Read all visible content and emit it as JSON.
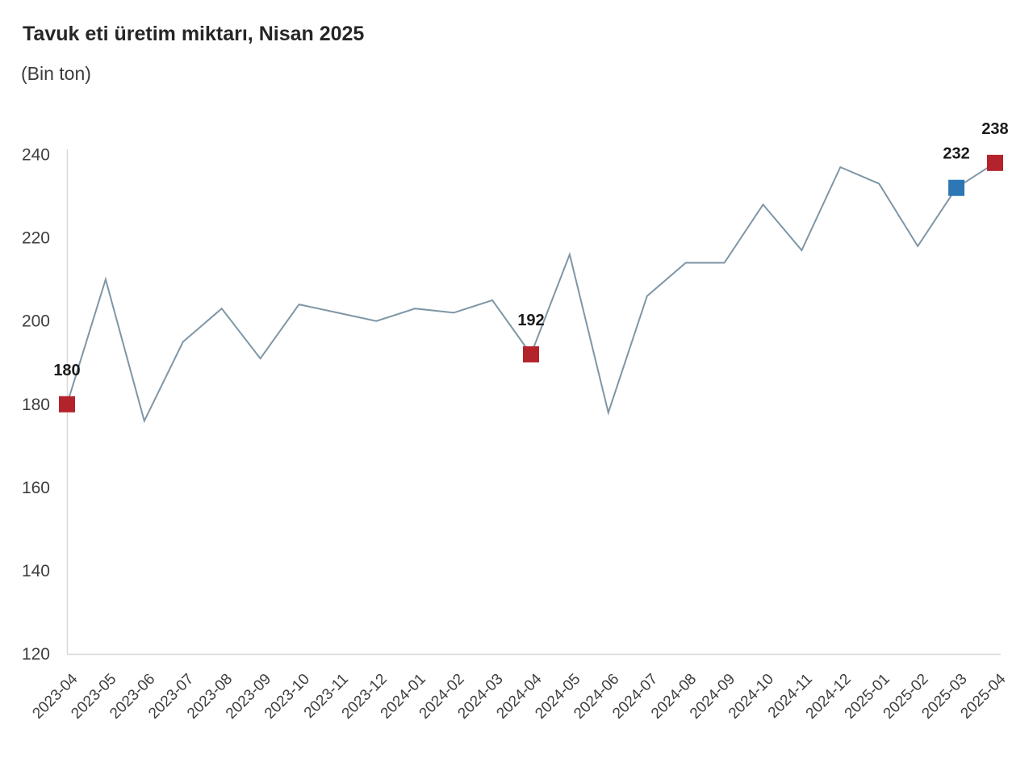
{
  "title": "Tavuk eti üretim miktarı, Nisan 2025",
  "subtitle": "(Bin ton)",
  "chart_data": {
    "type": "line",
    "title": "Tavuk eti üretim miktarı, Nisan 2025",
    "unit_label": "(Bin ton)",
    "x": [
      "2023-04",
      "2023-05",
      "2023-06",
      "2023-07",
      "2023-08",
      "2023-09",
      "2023-10",
      "2023-11",
      "2023-12",
      "2024-01",
      "2024-02",
      "2024-03",
      "2024-04",
      "2024-05",
      "2024-06",
      "2024-07",
      "2024-08",
      "2024-09",
      "2024-10",
      "2024-11",
      "2024-12",
      "2025-01",
      "2025-02",
      "2025-03",
      "2025-04"
    ],
    "series": [
      {
        "values": [
          180,
          210,
          176,
          195,
          203,
          191,
          204,
          202,
          200,
          203,
          202,
          205,
          192,
          216,
          178,
          206,
          214,
          214,
          228,
          217,
          237,
          233,
          218,
          232,
          238
        ]
      }
    ],
    "ylim": [
      120,
      240
    ],
    "y_ticks": [
      120,
      140,
      160,
      180,
      200,
      220,
      240
    ],
    "grid": false,
    "legend_position": "none",
    "colors": {
      "line": "#7e96a6",
      "axis": "#d8d8d8",
      "tick_label": "#3f3f3f",
      "data_label": "#1a1a1a",
      "red_marker": "#b4222b",
      "blue_marker": "#2e77b5"
    },
    "markers": [
      {
        "month": "2023-04",
        "value": 180,
        "label": "180",
        "color": "#b4222b"
      },
      {
        "month": "2024-04",
        "value": 192,
        "label": "192",
        "color": "#b4222b"
      },
      {
        "month": "2025-03",
        "value": 232,
        "label": "232",
        "color": "#2e77b5"
      },
      {
        "month": "2025-04",
        "value": 238,
        "label": "238",
        "color": "#b4222b"
      }
    ]
  }
}
